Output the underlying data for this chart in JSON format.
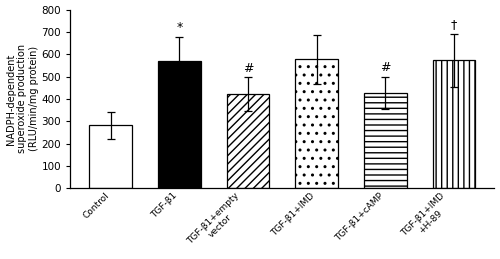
{
  "categories": [
    "Control",
    "TGF-β1",
    "TGF-β1+empty\nvector",
    "TGF-β1+IMD",
    "TGF-β1+cAMP",
    "TGF-β1+IMD\n+H-89"
  ],
  "values": [
    282,
    568,
    422,
    578,
    427,
    572
  ],
  "errors": [
    60,
    110,
    75,
    110,
    72,
    118
  ],
  "bar_colors": [
    "white",
    "black",
    "white",
    "white",
    "white",
    "white"
  ],
  "hatches": [
    "",
    "",
    "////",
    "..",
    "---",
    "|||"
  ],
  "edgecolors": [
    "black",
    "black",
    "black",
    "black",
    "black",
    "black"
  ],
  "significance": [
    "",
    "*",
    "#",
    "",
    "#",
    "†"
  ],
  "ylabel_line1": "NADPH-dependent",
  "ylabel_line2": "superoxide production",
  "ylabel_line3": "(RLU/min/mg protein)",
  "ylim": [
    0,
    800
  ],
  "yticks": [
    0,
    100,
    200,
    300,
    400,
    500,
    600,
    700,
    800
  ],
  "figsize": [
    5.0,
    2.59
  ],
  "dpi": 100
}
